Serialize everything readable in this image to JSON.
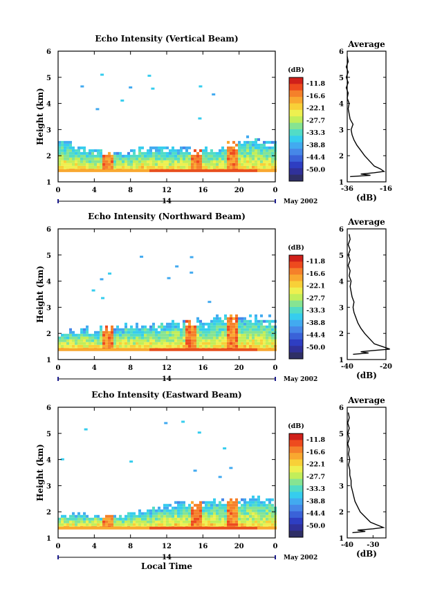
{
  "figure": {
    "date_label": "May 2002",
    "day_label": "14",
    "time_label": "Local Time"
  },
  "colorbar": {
    "unit": "(dB)",
    "ticks": [
      "-11.8",
      "-16.6",
      "-22.1",
      "-27.7",
      "-33.3",
      "-38.8",
      "-44.4",
      "-50.0"
    ],
    "colors": [
      "#d0201a",
      "#ee4a1e",
      "#f5802a",
      "#f9a830",
      "#f8d038",
      "#eef050",
      "#c2ee5a",
      "#86e492",
      "#52dcc6",
      "#36cdee",
      "#42aaf0",
      "#4687e8",
      "#3a62d8",
      "#2e3ec2",
      "#30319a",
      "#2f2f66"
    ]
  },
  "colors": {
    "ridge": "#e8501e",
    "core": "#d0201a"
  },
  "chart_data": [
    {
      "type": "heatmap",
      "title": "Echo Intensity (Vertical Beam)",
      "ylabel": "Height (km)",
      "xlim": [
        0,
        24
      ],
      "ylim": [
        1,
        6
      ],
      "x_ticks": [
        "0",
        "4",
        "8",
        "12",
        "16",
        "20",
        "0"
      ],
      "y_ticks": [
        "1",
        "2",
        "3",
        "4",
        "5",
        "6"
      ],
      "color_scale_db": [
        -50.0,
        -11.8
      ],
      "features": {
        "boundary_layer_top_km": [
          [
            0,
            2.6
          ],
          [
            3,
            2.35
          ],
          [
            6,
            2.1
          ],
          [
            9,
            2.2
          ],
          [
            12,
            2.3
          ],
          [
            15,
            2.2
          ],
          [
            18,
            2.3
          ],
          [
            21,
            2.7
          ],
          [
            24,
            2.5
          ]
        ],
        "echo_base_km": 1.4,
        "scatter_bursts": [
          [
            5.3,
            2.3
          ],
          [
            15.0,
            2.7
          ],
          [
            19.0,
            2.9
          ]
        ]
      },
      "profile": {
        "title": "Average",
        "xlabel": "(dB)",
        "xlim": [
          -36,
          -16
        ],
        "x_ticks": [
          "-36",
          "-16"
        ],
        "y_ticks": [
          "1",
          "2",
          "3",
          "4",
          "5",
          "6"
        ],
        "height_km": [
          1.2,
          1.25,
          1.3,
          1.35,
          1.4,
          1.5,
          1.6,
          1.8,
          2.0,
          2.2,
          2.4,
          2.6,
          2.8,
          3.0,
          3.2,
          3.4,
          3.6,
          3.8,
          4.0,
          4.2,
          4.4,
          4.6,
          4.8,
          5.0,
          5.2,
          5.4,
          5.6,
          5.8
        ],
        "avg_db": [
          -34.5,
          -24,
          -29,
          -22,
          -17,
          -19,
          -22,
          -24.5,
          -27,
          -29,
          -31,
          -32.5,
          -33.5,
          -34,
          -33,
          -34.5,
          -35,
          -35.5,
          -35,
          -36,
          -35.5,
          -36.5,
          -35.5,
          -36.5,
          -35.5,
          -36.5,
          -35.5,
          -36
        ]
      }
    },
    {
      "type": "heatmap",
      "title": "Echo Intensity (Northward Beam)",
      "ylabel": "Height (km)",
      "xlim": [
        0,
        24
      ],
      "ylim": [
        1,
        6
      ],
      "x_ticks": [
        "0",
        "4",
        "8",
        "12",
        "16",
        "20",
        "0"
      ],
      "y_ticks": [
        "1",
        "2",
        "3",
        "4",
        "5",
        "6"
      ],
      "color_scale_db": [
        -50.0,
        -11.8
      ],
      "features": {
        "boundary_layer_top_km": [
          [
            0,
            2.0
          ],
          [
            3,
            2.1
          ],
          [
            6,
            2.2
          ],
          [
            9,
            2.3
          ],
          [
            12,
            2.4
          ],
          [
            15,
            2.4
          ],
          [
            18,
            2.6
          ],
          [
            21,
            2.75
          ],
          [
            24,
            2.5
          ]
        ],
        "echo_base_km": 1.35,
        "scatter_bursts": [
          [
            5.3,
            2.3
          ],
          [
            14.5,
            3.0
          ],
          [
            19.0,
            3.0
          ]
        ]
      },
      "profile": {
        "title": "Average",
        "xlabel": "(dB)",
        "xlim": [
          -40,
          -20
        ],
        "x_ticks": [
          "-40",
          "-20"
        ],
        "y_ticks": [
          "1",
          "2",
          "3",
          "4",
          "5",
          "6"
        ],
        "height_km": [
          1.2,
          1.25,
          1.3,
          1.35,
          1.4,
          1.5,
          1.6,
          1.8,
          2.0,
          2.2,
          2.4,
          2.6,
          2.8,
          3.0,
          3.2,
          3.4,
          3.6,
          3.8,
          4.0,
          4.2,
          4.4,
          4.6,
          4.8,
          5.0,
          5.2,
          5.4,
          5.6,
          5.8
        ],
        "avg_db": [
          -37,
          -29,
          -33,
          -26,
          -18,
          -22,
          -26,
          -28.5,
          -31,
          -33,
          -34.5,
          -35.5,
          -36.5,
          -37,
          -36.5,
          -37.5,
          -38,
          -38.5,
          -38,
          -39,
          -38.5,
          -39.5,
          -38.5,
          -39.5,
          -38.5,
          -39.5,
          -38.5,
          -39
        ]
      }
    },
    {
      "type": "heatmap",
      "title": "Echo Intensity (Eastward Beam)",
      "ylabel": "Height (km)",
      "xlabel": "Local Time",
      "xlim": [
        0,
        24
      ],
      "ylim": [
        1,
        6
      ],
      "x_ticks": [
        "0",
        "4",
        "8",
        "12",
        "16",
        "20",
        "0"
      ],
      "y_ticks": [
        "1",
        "2",
        "3",
        "4",
        "5",
        "6"
      ],
      "color_scale_db": [
        -50.0,
        -11.8
      ],
      "features": {
        "boundary_layer_top_km": [
          [
            0,
            1.9
          ],
          [
            3,
            1.8
          ],
          [
            6,
            1.8
          ],
          [
            9,
            2.0
          ],
          [
            12,
            2.3
          ],
          [
            15,
            2.4
          ],
          [
            18,
            2.4
          ],
          [
            21,
            2.6
          ],
          [
            24,
            2.4
          ]
        ],
        "echo_base_km": 1.35,
        "scatter_bursts": [
          [
            5.3,
            2.5
          ],
          [
            15.0,
            3.0
          ],
          [
            19.0,
            2.8
          ]
        ]
      },
      "profile": {
        "title": "Average",
        "xlabel": "(dB)",
        "xlim": [
          -40,
          -25
        ],
        "x_ticks": [
          "-40",
          "-30"
        ],
        "y_ticks": [
          "1",
          "2",
          "3",
          "4",
          "5",
          "6"
        ],
        "height_km": [
          1.2,
          1.25,
          1.3,
          1.35,
          1.4,
          1.5,
          1.6,
          1.8,
          2.0,
          2.2,
          2.4,
          2.6,
          2.8,
          3.0,
          3.2,
          3.4,
          3.6,
          3.8,
          4.0,
          4.2,
          4.4,
          4.6,
          4.8,
          5.0,
          5.2,
          5.4,
          5.6,
          5.8
        ],
        "avg_db": [
          -38,
          -33,
          -36,
          -30,
          -26,
          -28.5,
          -31,
          -33,
          -35,
          -36,
          -37,
          -37.5,
          -38,
          -38.5,
          -38.5,
          -39,
          -39,
          -39.5,
          -39,
          -39.5,
          -39.2,
          -39.8,
          -39.2,
          -39.8,
          -39.2,
          -39.8,
          -39.2,
          -39.6
        ]
      }
    }
  ]
}
